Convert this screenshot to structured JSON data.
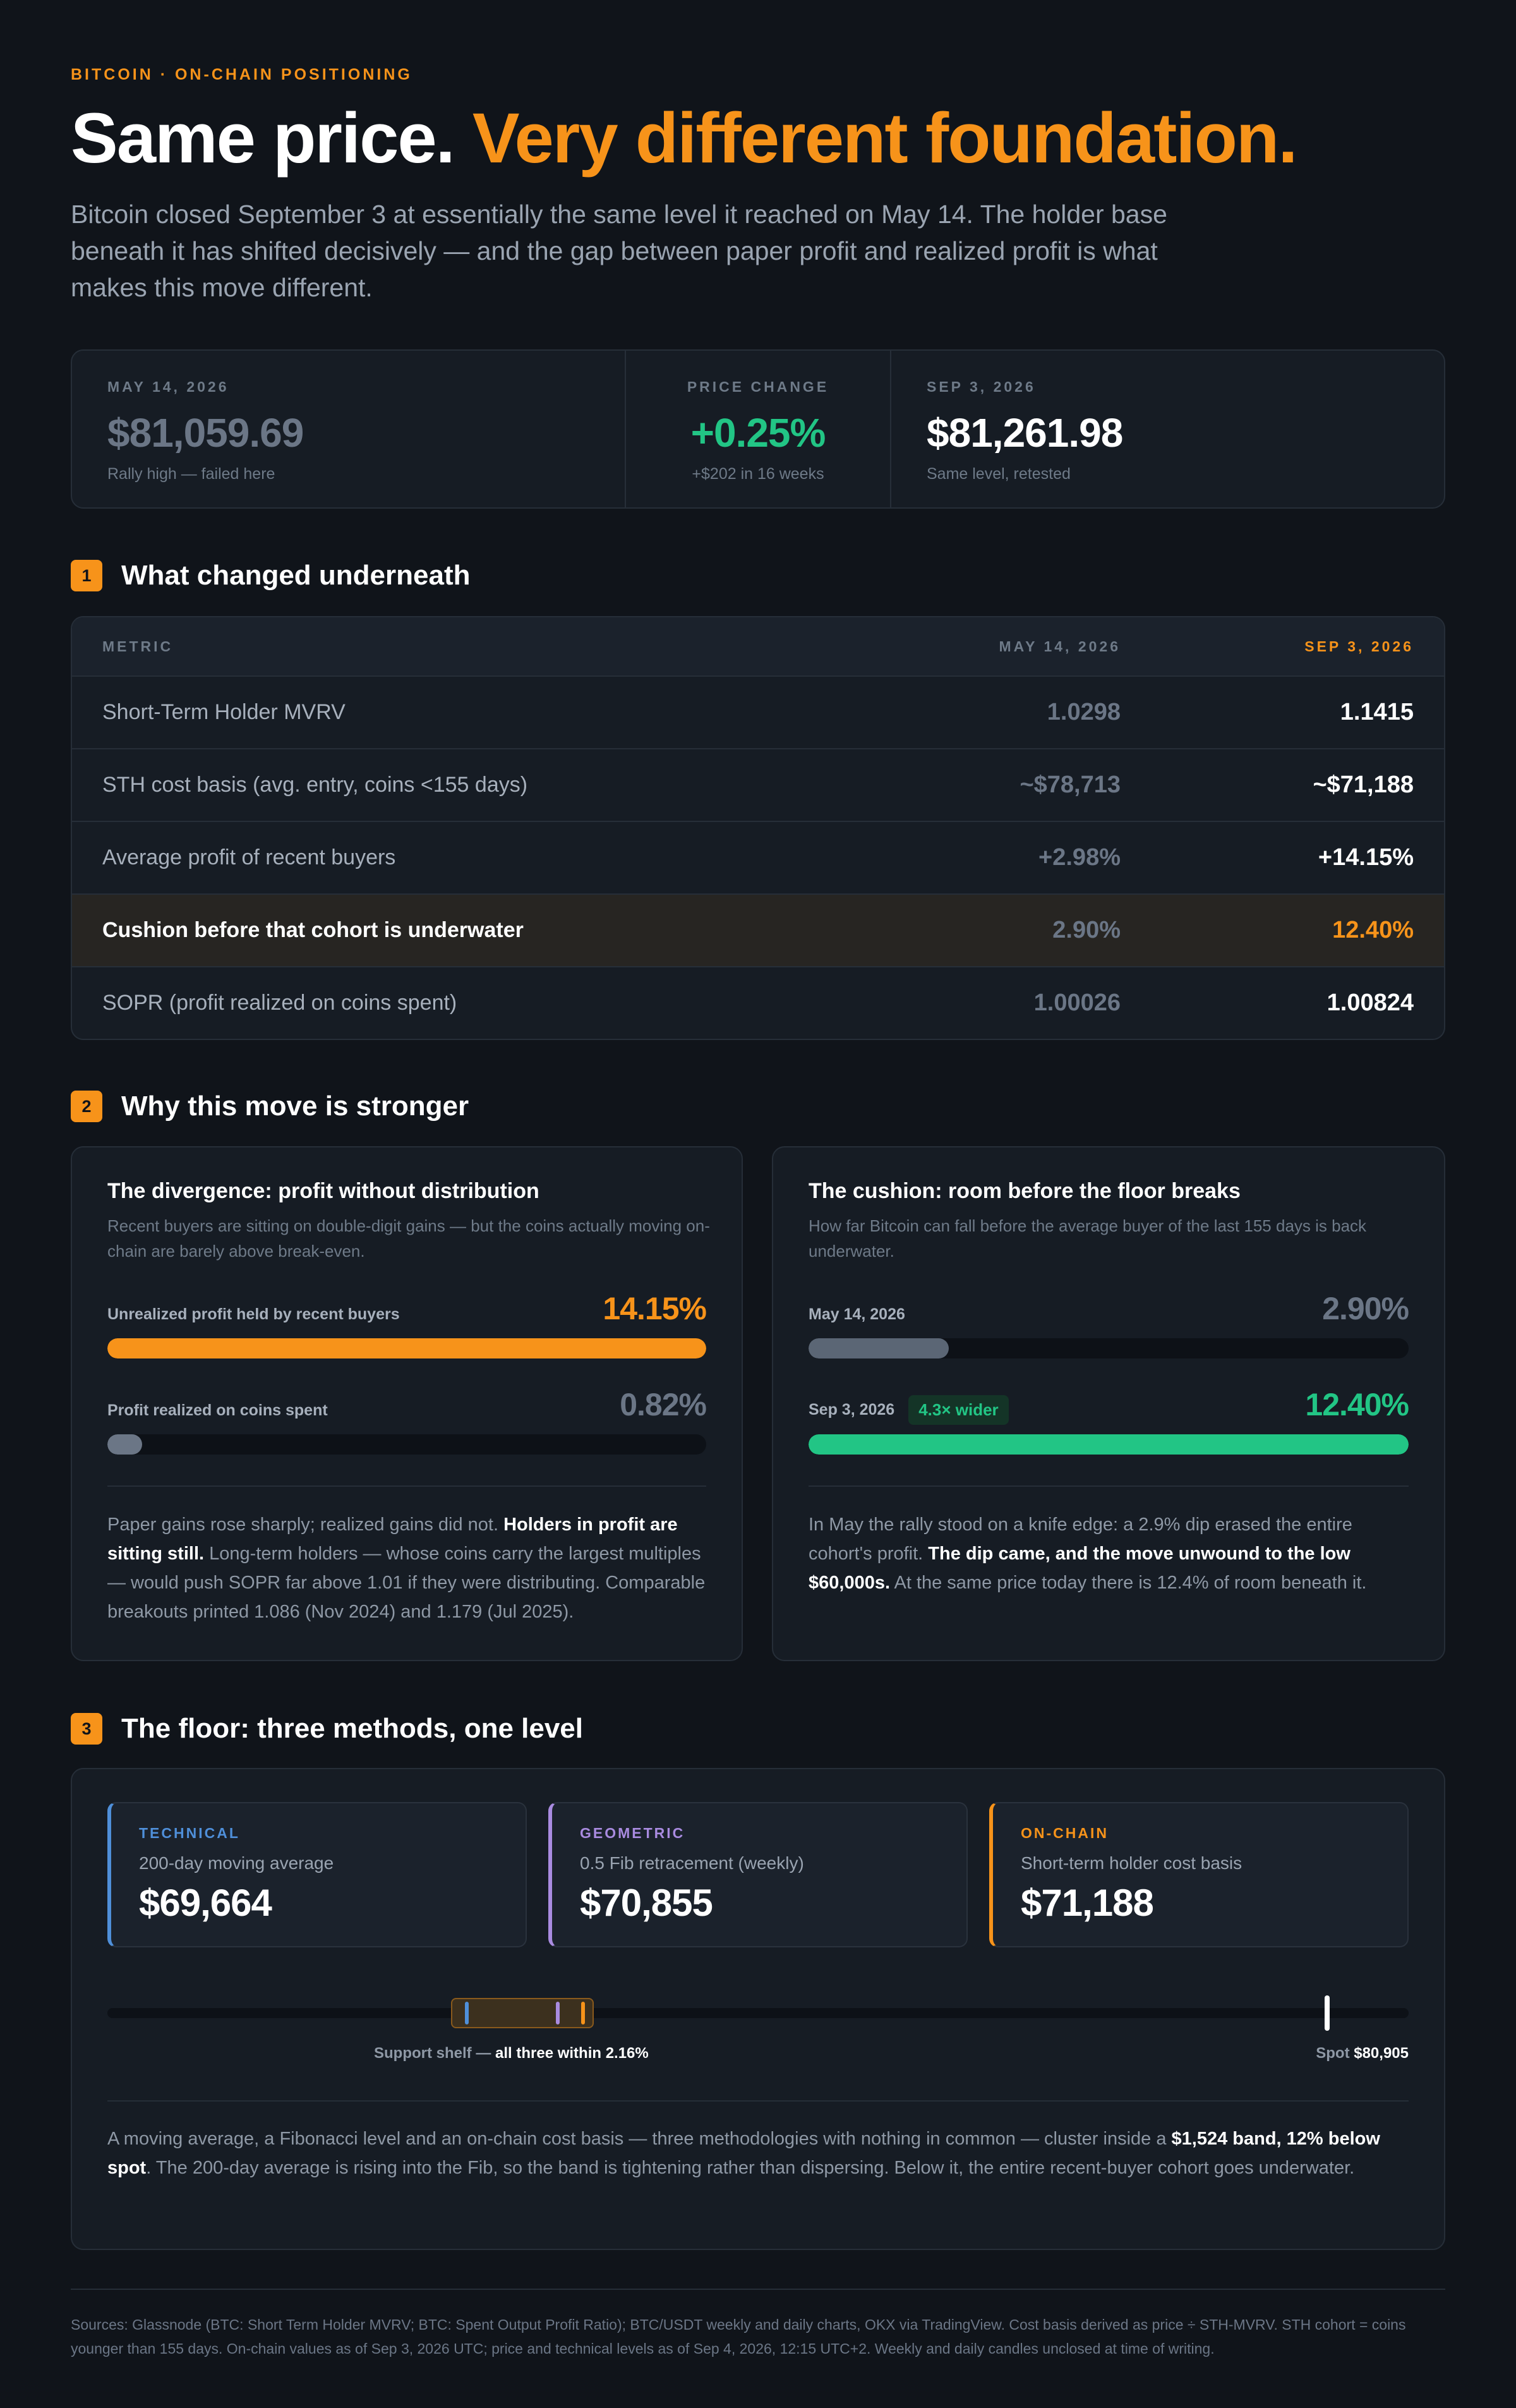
{
  "header": {
    "eyebrow": "BITCOIN · ON-CHAIN POSITIONING",
    "headline_main": "Same price.",
    "headline_accent": "Very different foundation.",
    "lede": "Bitcoin closed September 3 at essentially the same level it reached on May 14. The holder base beneath it has shifted decisively — and the gap between paper profit and realized profit is what makes this move different."
  },
  "price_card": {
    "left": {
      "label": "MAY 14, 2026",
      "value": "$81,059.69",
      "note": "Rally high — failed here"
    },
    "middle": {
      "label": "PRICE CHANGE",
      "value": "+0.25%",
      "note": "+$202 in 16 weeks"
    },
    "right": {
      "label": "SEP 3, 2026",
      "value": "$81,261.98",
      "note": "Same level, retested"
    }
  },
  "section1": {
    "num": "1",
    "title": "What changed underneath",
    "columns": [
      "METRIC",
      "MAY 14, 2026",
      "SEP 3, 2026"
    ],
    "rows": [
      {
        "metric": "Short-Term Holder MVRV",
        "may": "1.0298",
        "sep": "1.1415"
      },
      {
        "metric": "STH cost basis (avg. entry, coins <155 days)",
        "may": "~$78,713",
        "sep": "~$71,188"
      },
      {
        "metric": "Average profit of recent buyers",
        "may": "+2.98%",
        "sep": "+14.15%"
      },
      {
        "metric": "Cushion before that cohort is underwater",
        "may": "2.90%",
        "sep": "12.40%"
      },
      {
        "metric": "SOPR (profit realized on coins spent)",
        "may": "1.00026",
        "sep": "1.00824"
      }
    ]
  },
  "section2": {
    "num": "2",
    "title": "Why this move is stronger",
    "divergence": {
      "title": "The divergence: profit without distribution",
      "subtitle": "Recent buyers are sitting on double-digit gains — but the coins actually moving on-chain are barely above break-even.",
      "bar1": {
        "label": "Unrealized profit held by recent buyers",
        "value": "14.15%",
        "fill": 1.0
      },
      "bar2": {
        "label": "Profit realized on coins spent",
        "value": "0.82%",
        "fill": 0.058
      },
      "body_1": "Paper gains rose sharply; realized gains did not. ",
      "body_bold": "Holders in profit are sitting still.",
      "body_2": " Long-term holders — whose coins carry the largest multiples — would push SOPR far above 1.01 if they were distributing. Comparable breakouts printed 1.086 (Nov 2024) and 1.179 (Jul 2025)."
    },
    "cushion": {
      "title": "The cushion: room before the floor breaks",
      "subtitle": "How far Bitcoin can fall before the average buyer of the last 155 days is back underwater.",
      "bar1": {
        "label": "May 14, 2026",
        "value": "2.90%",
        "fill": 0.234
      },
      "bar2": {
        "label": "Sep 3, 2026",
        "badge": "4.3× wider",
        "value": "12.40%",
        "fill": 1.0
      },
      "body_1": "In May the rally stood on a knife edge: a 2.9% dip erased the entire cohort's profit. ",
      "body_bold": "The dip came, and the move unwound to the low $60,000s.",
      "body_2": " At the same price today there is 12.4% of room beneath it."
    }
  },
  "section3": {
    "num": "3",
    "title": "The floor: three methods, one level",
    "methods": [
      {
        "label": "TECHNICAL",
        "desc": "200-day moving average",
        "value": "$69,664",
        "color": "#4f8fd9"
      },
      {
        "label": "GEOMETRIC",
        "desc": "0.5 Fib retracement (weekly)",
        "value": "$70,855",
        "color": "#a98be0"
      },
      {
        "label": "ON-CHAIN",
        "desc": "Short-term holder cost basis",
        "value": "$71,188",
        "color": "#f7931a"
      }
    ],
    "shelf_label": "Support shelf — ",
    "shelf_bold": "all three within 2.16%",
    "spot_label": "Spot ",
    "spot_value": "$80,905",
    "body_1": "A moving average, a Fibonacci level and an on-chain cost basis — three methodologies with nothing in common — cluster inside a ",
    "body_bold": "$1,524 band, 12% below spot",
    "body_2": ". The 200-day average is rising into the Fib, so the band is tightening rather than dispersing. Below it, the entire recent-buyer cohort goes underwater."
  },
  "footer": {
    "sources": "Sources: Glassnode (BTC: Short Term Holder MVRV; BTC: Spent Output Profit Ratio); BTC/USDT weekly and daily charts, OKX via TradingView. Cost basis derived as price ÷ STH-MVRV. STH cohort = coins younger than 155 days. On-chain values as of Sep 3, 2026 UTC; price and technical levels as of Sep 4, 2026, 12:15 UTC+2. Weekly and daily candles unclosed at time of writing."
  },
  "colors": {
    "background": "#10141a",
    "accent": "#f7931a",
    "positive": "#22c585",
    "muted": "#6b7686"
  }
}
